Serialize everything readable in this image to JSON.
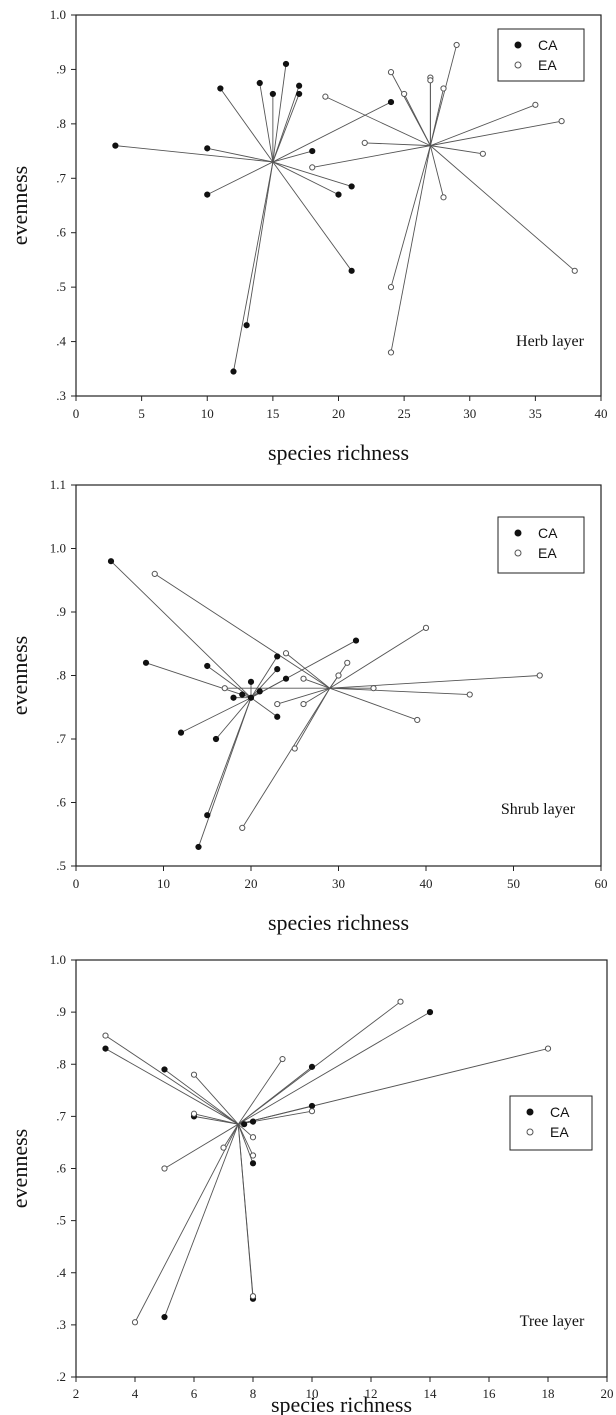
{
  "chart_data": [
    {
      "type": "scatter",
      "panel_label": "Herb layer",
      "xlabel": "species richness",
      "ylabel": "evenness",
      "xlim": [
        0,
        40
      ],
      "ylim": [
        0.3,
        1.0
      ],
      "x_ticks": [
        "0",
        "5",
        "10",
        "15",
        "20",
        "25",
        "30",
        "35",
        "40"
      ],
      "y_ticks": [
        ".3",
        ".4",
        ".5",
        ".6",
        ".7",
        ".8",
        ".9",
        "1.0"
      ],
      "legend": [
        "CA",
        "EA"
      ],
      "legend_position": "top-right",
      "series": [
        {
          "name": "CA",
          "marker": "filled",
          "centroid": [
            15,
            0.73
          ],
          "points": [
            [
              3,
              0.76
            ],
            [
              10,
              0.755
            ],
            [
              10,
              0.67
            ],
            [
              11,
              0.865
            ],
            [
              12,
              0.345
            ],
            [
              13,
              0.43
            ],
            [
              14,
              0.875
            ],
            [
              15,
              0.855
            ],
            [
              16,
              0.91
            ],
            [
              17,
              0.87
            ],
            [
              17,
              0.855
            ],
            [
              18,
              0.75
            ],
            [
              20,
              0.67
            ],
            [
              21,
              0.685
            ],
            [
              21,
              0.53
            ],
            [
              24,
              0.84
            ]
          ]
        },
        {
          "name": "EA",
          "marker": "open",
          "centroid": [
            27,
            0.76
          ],
          "points": [
            [
              18,
              0.72
            ],
            [
              19,
              0.85
            ],
            [
              22,
              0.765
            ],
            [
              24,
              0.895
            ],
            [
              24,
              0.5
            ],
            [
              24,
              0.38
            ],
            [
              25,
              0.855
            ],
            [
              27,
              0.885
            ],
            [
              27,
              0.88
            ],
            [
              28,
              0.865
            ],
            [
              28,
              0.665
            ],
            [
              29,
              0.945
            ],
            [
              31,
              0.745
            ],
            [
              35,
              0.835
            ],
            [
              37,
              0.805
            ],
            [
              38,
              0.53
            ]
          ]
        }
      ]
    },
    {
      "type": "scatter",
      "panel_label": "Shrub layer",
      "xlabel": "species richness",
      "ylabel": "evenness",
      "xlim": [
        0,
        60
      ],
      "ylim": [
        0.5,
        1.1
      ],
      "x_ticks": [
        "0",
        "10",
        "20",
        "30",
        "40",
        "50",
        "60"
      ],
      "y_ticks": [
        ".5",
        ".6",
        ".7",
        ".8",
        ".9",
        "1.0",
        "1.1"
      ],
      "legend": [
        "CA",
        "EA"
      ],
      "legend_position": "top-right",
      "series": [
        {
          "name": "CA",
          "marker": "filled",
          "centroid": [
            20,
            0.765
          ],
          "points": [
            [
              4,
              0.98
            ],
            [
              8,
              0.82
            ],
            [
              12,
              0.71
            ],
            [
              14,
              0.53
            ],
            [
              15,
              0.58
            ],
            [
              15,
              0.815
            ],
            [
              16,
              0.7
            ],
            [
              18,
              0.765
            ],
            [
              19,
              0.77
            ],
            [
              20,
              0.79
            ],
            [
              20,
              0.765
            ],
            [
              21,
              0.775
            ],
            [
              23,
              0.81
            ],
            [
              23,
              0.83
            ],
            [
              23,
              0.735
            ],
            [
              24,
              0.795
            ],
            [
              32,
              0.855
            ]
          ]
        },
        {
          "name": "EA",
          "marker": "open",
          "centroid": [
            29,
            0.78
          ],
          "points": [
            [
              9,
              0.96
            ],
            [
              17,
              0.78
            ],
            [
              19,
              0.56
            ],
            [
              23,
              0.755
            ],
            [
              24,
              0.835
            ],
            [
              25,
              0.685
            ],
            [
              26,
              0.795
            ],
            [
              26,
              0.755
            ],
            [
              30,
              0.8
            ],
            [
              31,
              0.82
            ],
            [
              34,
              0.78
            ],
            [
              39,
              0.73
            ],
            [
              40,
              0.875
            ],
            [
              45,
              0.77
            ],
            [
              53,
              0.8
            ]
          ]
        }
      ]
    },
    {
      "type": "scatter",
      "panel_label": "Tree layer",
      "xlabel": "species richness",
      "ylabel": "evenness",
      "xlim": [
        2,
        20
      ],
      "ylim": [
        0.2,
        1.0
      ],
      "x_ticks": [
        "2",
        "4",
        "6",
        "8",
        "10",
        "12",
        "14",
        "16",
        "18",
        "20"
      ],
      "y_ticks": [
        ".2",
        ".3",
        ".4",
        ".5",
        ".6",
        ".7",
        ".8",
        ".9",
        "1.0"
      ],
      "legend": [
        "CA",
        "EA"
      ],
      "legend_position": "right",
      "series": [
        {
          "name": "CA",
          "marker": "filled",
          "centroid": [
            7.5,
            0.685
          ],
          "points": [
            [
              3,
              0.83
            ],
            [
              5,
              0.79
            ],
            [
              5,
              0.315
            ],
            [
              6,
              0.7
            ],
            [
              7.7,
              0.685
            ],
            [
              8,
              0.61
            ],
            [
              8,
              0.35
            ],
            [
              8,
              0.69
            ],
            [
              10,
              0.795
            ],
            [
              10,
              0.72
            ],
            [
              14,
              0.9
            ]
          ]
        },
        {
          "name": "EA",
          "marker": "open",
          "centroid": [
            7.5,
            0.685
          ],
          "points": [
            [
              3,
              0.855
            ],
            [
              4,
              0.305
            ],
            [
              5,
              0.6
            ],
            [
              6,
              0.78
            ],
            [
              6,
              0.705
            ],
            [
              7,
              0.64
            ],
            [
              8,
              0.66
            ],
            [
              8,
              0.625
            ],
            [
              8,
              0.355
            ],
            [
              9,
              0.81
            ],
            [
              10,
              0.71
            ],
            [
              13,
              0.92
            ],
            [
              18,
              0.83
            ]
          ]
        }
      ]
    }
  ]
}
